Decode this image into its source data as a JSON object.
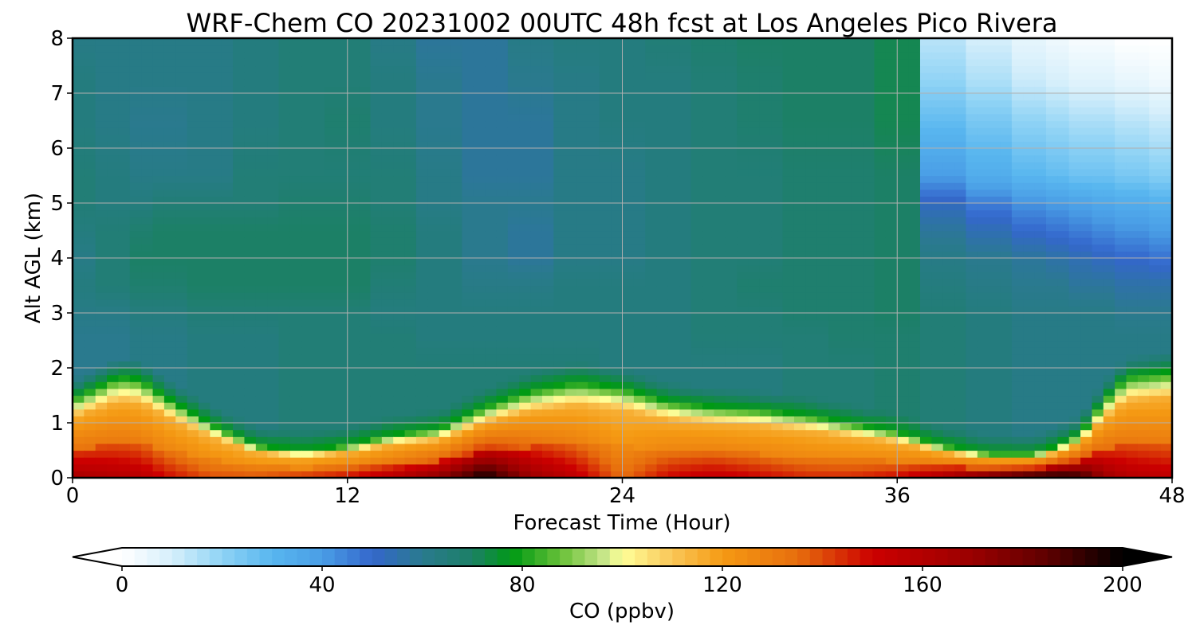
{
  "chart_data": {
    "type": "heatmap",
    "title": "WRF-Chem CO  20231002 00UTC 48h fcst at Los Angeles Pico Rivera",
    "xlabel": "Forecast Time (Hour)",
    "ylabel": "Alt AGL (km)",
    "xlim": [
      0,
      48
    ],
    "ylim": [
      0,
      8
    ],
    "xticks": [
      0,
      12,
      24,
      36,
      48
    ],
    "yticks": [
      0,
      1,
      2,
      3,
      4,
      5,
      6,
      7,
      8
    ],
    "grid": true,
    "colorbar": {
      "label": "CO  (ppbv)",
      "min": 0,
      "max": 200,
      "ticks": [
        0,
        40,
        80,
        120,
        160,
        200
      ],
      "extend": "both",
      "stops": [
        {
          "v": 0,
          "color": "#ffffff"
        },
        {
          "v": 10,
          "color": "#d6effb"
        },
        {
          "v": 20,
          "color": "#8fd3f5"
        },
        {
          "v": 30,
          "color": "#58b6ef"
        },
        {
          "v": 40,
          "color": "#4a9ee6"
        },
        {
          "v": 50,
          "color": "#3467cc"
        },
        {
          "v": 60,
          "color": "#2a7a8e"
        },
        {
          "v": 70,
          "color": "#1c8066"
        },
        {
          "v": 78,
          "color": "#009a14"
        },
        {
          "v": 88,
          "color": "#6cc23a"
        },
        {
          "v": 96,
          "color": "#c2e487"
        },
        {
          "v": 100,
          "color": "#ffff99"
        },
        {
          "v": 110,
          "color": "#f9c658"
        },
        {
          "v": 120,
          "color": "#f59a13"
        },
        {
          "v": 135,
          "color": "#e76e0d"
        },
        {
          "v": 150,
          "color": "#cc0000"
        },
        {
          "v": 170,
          "color": "#9a0000"
        },
        {
          "v": 185,
          "color": "#5e0000"
        },
        {
          "v": 200,
          "color": "#000000"
        }
      ]
    },
    "x": [
      0,
      2,
      3,
      4,
      6,
      8,
      10,
      12,
      14,
      16,
      18,
      20,
      22,
      24,
      26,
      28,
      30,
      32,
      34,
      36,
      38,
      40,
      42,
      43,
      44,
      45,
      46,
      48
    ],
    "y": [
      0,
      0.1,
      0.25,
      0.4,
      0.6,
      0.8,
      1.0,
      1.2,
      1.4,
      1.6,
      1.8,
      2.0,
      2.3,
      2.6,
      3.0,
      3.5,
      4.0,
      5.0,
      6.0,
      7.0,
      8.0
    ],
    "pbl_top_km": [
      1.45,
      1.85,
      1.8,
      1.5,
      1.0,
      0.6,
      0.5,
      0.6,
      0.8,
      0.9,
      1.3,
      1.6,
      1.75,
      1.65,
      1.4,
      1.3,
      1.25,
      1.15,
      1.0,
      0.85,
      0.6,
      0.45,
      0.45,
      0.6,
      0.8,
      1.4,
      1.85,
      1.95
    ],
    "surface_co_ppbv": [
      165,
      160,
      158,
      150,
      140,
      140,
      145,
      150,
      160,
      175,
      200,
      170,
      155,
      135,
      150,
      155,
      150,
      145,
      145,
      150,
      165,
      185,
      200,
      200,
      195,
      170,
      160,
      155
    ],
    "free_troposphere_co_ppbv": [
      [
        60,
        60,
        62,
        64,
        62,
        64,
        66,
        66,
        64,
        64,
        62
      ],
      [
        60,
        60,
        62,
        66,
        66,
        66,
        64,
        64,
        62,
        62,
        62
      ],
      [
        62,
        62,
        64,
        68,
        70,
        68,
        64,
        62,
        60,
        62,
        62
      ],
      [
        62,
        62,
        64,
        68,
        70,
        70,
        66,
        62,
        60,
        62,
        62
      ],
      [
        64,
        64,
        66,
        70,
        70,
        70,
        66,
        62,
        62,
        62,
        62
      ],
      [
        64,
        64,
        66,
        70,
        70,
        70,
        66,
        66,
        64,
        64,
        64
      ],
      [
        66,
        66,
        66,
        70,
        70,
        70,
        68,
        66,
        66,
        66,
        66
      ],
      [
        66,
        66,
        66,
        70,
        70,
        70,
        68,
        66,
        68,
        66,
        66
      ],
      [
        66,
        66,
        64,
        66,
        68,
        68,
        66,
        66,
        64,
        64,
        62
      ],
      [
        66,
        64,
        64,
        64,
        64,
        64,
        62,
        62,
        60,
        60,
        58
      ],
      [
        66,
        64,
        64,
        62,
        60,
        60,
        60,
        58,
        58,
        58,
        58
      ],
      [
        66,
        64,
        64,
        62,
        58,
        58,
        60,
        58,
        58,
        60,
        62
      ],
      [
        66,
        64,
        64,
        64,
        62,
        62,
        62,
        62,
        62,
        62,
        64
      ],
      [
        64,
        64,
        64,
        64,
        62,
        62,
        62,
        62,
        64,
        64,
        64
      ],
      [
        64,
        64,
        64,
        64,
        64,
        64,
        64,
        64,
        64,
        64,
        66
      ],
      [
        64,
        66,
        66,
        66,
        66,
        66,
        66,
        66,
        66,
        66,
        68
      ],
      [
        64,
        66,
        66,
        68,
        66,
        66,
        66,
        66,
        68,
        68,
        70
      ],
      [
        66,
        66,
        68,
        68,
        68,
        68,
        68,
        68,
        70,
        70,
        70
      ],
      [
        66,
        68,
        68,
        68,
        68,
        68,
        68,
        68,
        70,
        70,
        70
      ],
      [
        68,
        68,
        70,
        70,
        70,
        70,
        70,
        70,
        72,
        72,
        72
      ],
      [
        66,
        66,
        66,
        64,
        62,
        58,
        52,
        40,
        28,
        20,
        14
      ],
      [
        64,
        64,
        64,
        62,
        60,
        54,
        46,
        34,
        24,
        16,
        10
      ],
      [
        62,
        62,
        62,
        60,
        58,
        50,
        42,
        30,
        20,
        12,
        6
      ],
      [
        62,
        62,
        62,
        60,
        56,
        48,
        40,
        28,
        18,
        10,
        4
      ],
      [
        62,
        62,
        62,
        58,
        54,
        46,
        38,
        26,
        16,
        8,
        2
      ],
      [
        62,
        62,
        62,
        58,
        52,
        44,
        36,
        26,
        16,
        8,
        2
      ],
      [
        62,
        62,
        60,
        56,
        50,
        42,
        34,
        24,
        14,
        6,
        0
      ],
      [
        62,
        62,
        60,
        56,
        48,
        40,
        32,
        22,
        12,
        4,
        0
      ]
    ],
    "free_troposphere_levels_km": [
      2.0,
      2.6,
      3.0,
      3.5,
      4.0,
      4.5,
      5.0,
      5.5,
      6.5,
      7.2,
      8.0
    ]
  }
}
